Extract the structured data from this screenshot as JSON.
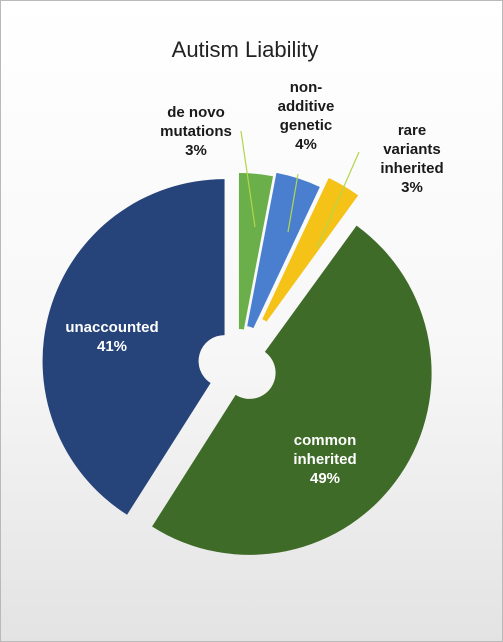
{
  "chart_data": {
    "type": "pie",
    "title": "Autism Liability",
    "style": "exploded doughnut",
    "categories": [
      "de novo mutations",
      "non-additive genetic",
      "rare variants inherited",
      "common inherited",
      "unaccounted"
    ],
    "values": [
      3,
      4,
      3,
      49,
      41
    ],
    "slices": [
      {
        "name": "de novo mutations",
        "value": 3,
        "color": "#6aaf4a",
        "label_lines": [
          "de novo",
          "mutations",
          "3%"
        ],
        "label_color": "#1a1a1a"
      },
      {
        "name": "non-additive genetic",
        "value": 4,
        "color": "#4a7fd0",
        "label_lines": [
          "non-",
          "additive",
          "genetic",
          "4%"
        ],
        "label_color": "#1a1a1a"
      },
      {
        "name": "rare variants inherited",
        "value": 3,
        "color": "#f5c218",
        "label_lines": [
          "rare",
          "variants",
          "inherited",
          "3%"
        ],
        "label_color": "#1a1a1a"
      },
      {
        "name": "common inherited",
        "value": 49,
        "color": "#3f6b28",
        "label_lines": [
          "common",
          "inherited",
          "49%"
        ],
        "label_color": "#ffffff"
      },
      {
        "name": "unaccounted",
        "value": 41,
        "color": "#26437a",
        "label_lines": [
          "unaccounted",
          "41%"
        ],
        "label_color": "#ffffff"
      }
    ],
    "legend": "none",
    "leader_line_color": "#b3d64a"
  }
}
